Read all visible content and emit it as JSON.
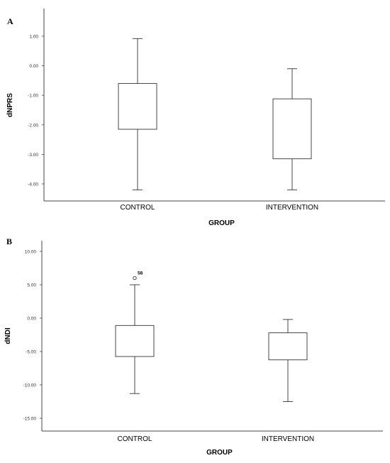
{
  "chart_data": [
    {
      "type": "box",
      "panel_label": "A",
      "xlabel": "GROUP",
      "ylabel": "dNPRS",
      "ylim": [
        -4.5,
        1.3
      ],
      "yticks": [
        1,
        0,
        -1,
        -2,
        -3,
        -4
      ],
      "ytick_labels": [
        "1.00",
        "0.00",
        "-1.00",
        "-2.00",
        "-3.00",
        "-4.00"
      ],
      "grid": false,
      "categories": [
        "CONTROL",
        "INTERVENTION"
      ],
      "boxes": [
        {
          "category": "CONTROL",
          "min": -4.2,
          "q1": -2.15,
          "median": null,
          "q3": -0.6,
          "max": 0.92,
          "outliers": []
        },
        {
          "category": "INTERVENTION",
          "min": -4.2,
          "q1": -3.15,
          "median": null,
          "q3": -1.12,
          "max": -0.1,
          "outliers": []
        }
      ]
    },
    {
      "type": "box",
      "panel_label": "B",
      "xlabel": "GROUP",
      "ylabel": "dNDI",
      "ylim": [
        -16.5,
        11
      ],
      "yticks": [
        10,
        5,
        0,
        -5,
        -10,
        -15
      ],
      "ytick_labels": [
        "10.00",
        "5.00",
        "0.00",
        "-5.00",
        "-10.00",
        "-15.00"
      ],
      "grid": false,
      "categories": [
        "CONTROL",
        "INTERVENTION"
      ],
      "boxes": [
        {
          "category": "CONTROL",
          "min": -11.3,
          "q1": -5.75,
          "median": null,
          "q3": -1.1,
          "max": 5.0,
          "outliers": [
            {
              "value": 6.0,
              "label": "58"
            }
          ]
        },
        {
          "category": "INTERVENTION",
          "min": -12.5,
          "q1": -6.25,
          "median": null,
          "q3": -2.2,
          "max": -0.2,
          "outliers": []
        }
      ]
    }
  ]
}
